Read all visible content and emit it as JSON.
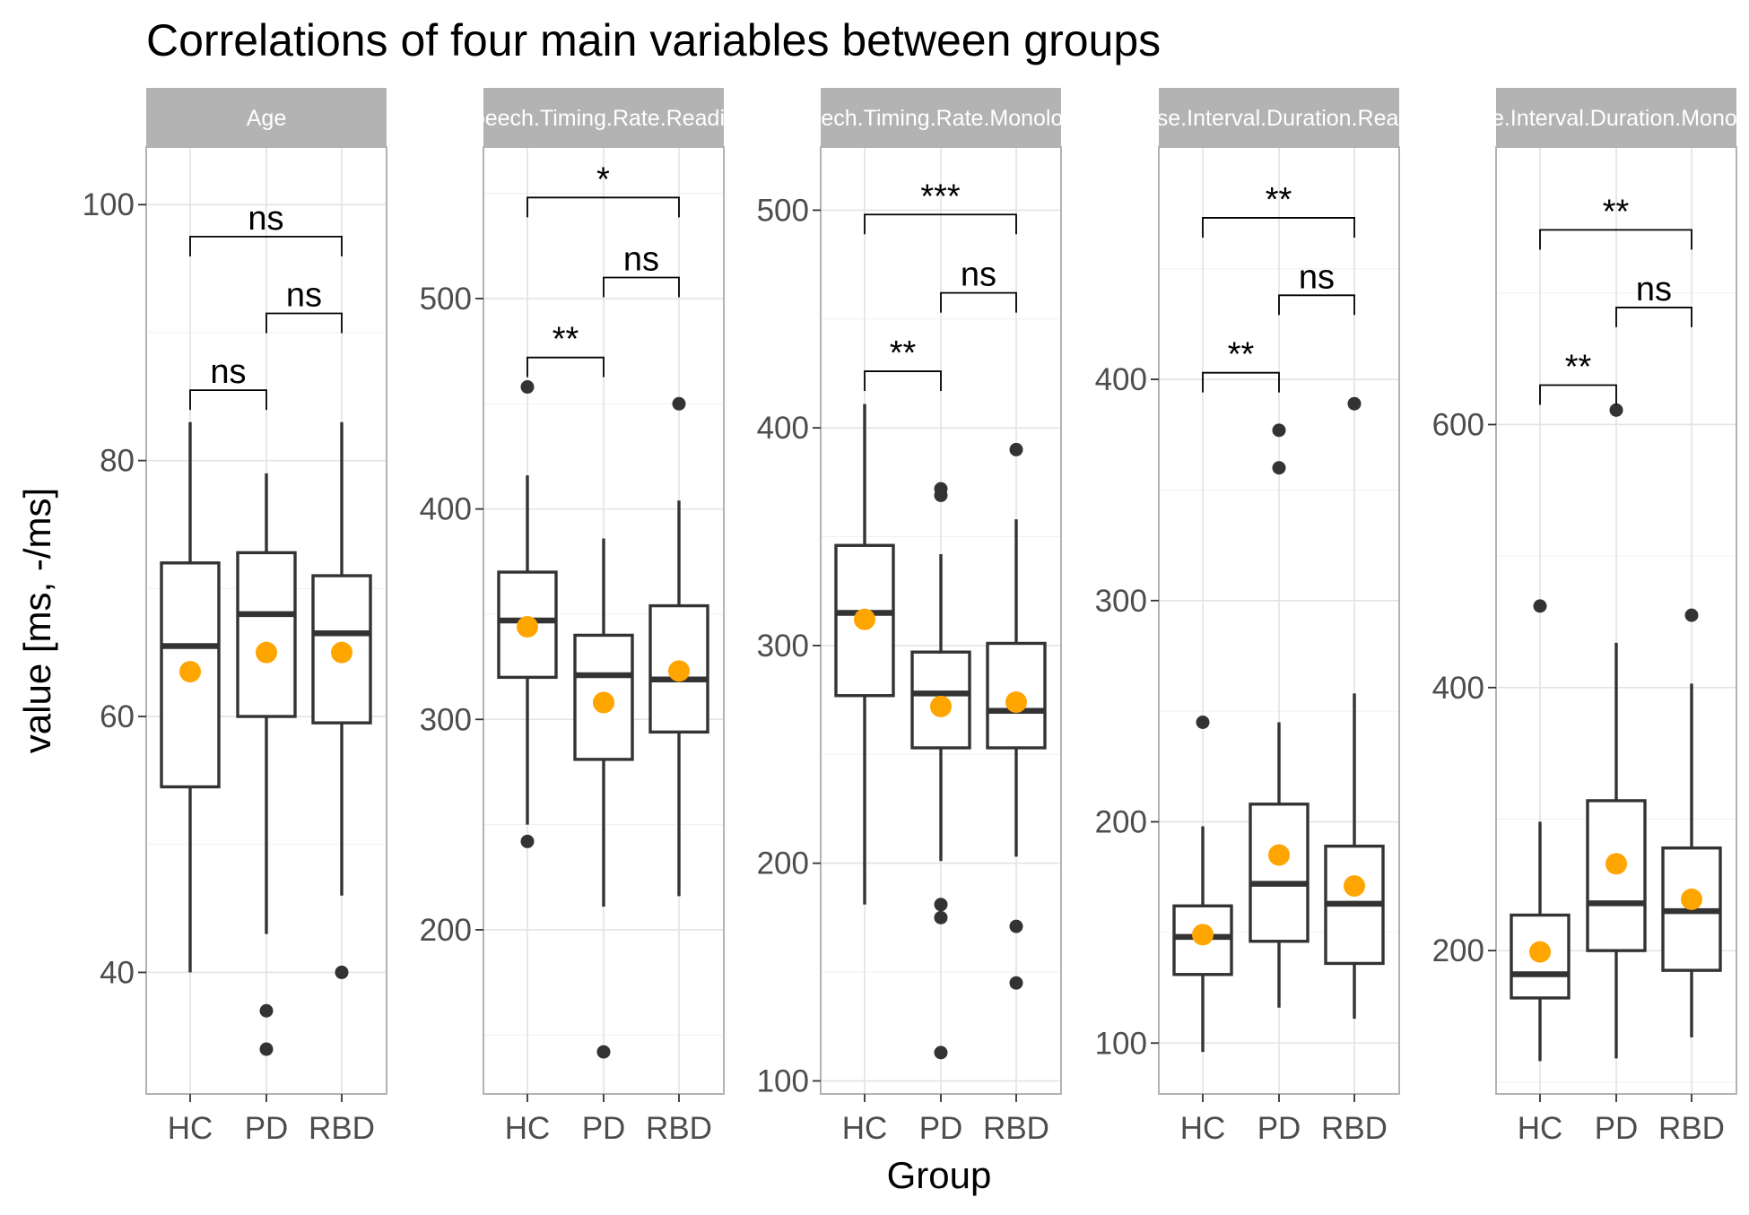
{
  "chart_data": {
    "type": "box",
    "title": "Correlations of four main variables between groups",
    "xlabel": "Group",
    "ylabel": "value [ms, -/ms]",
    "categories": [
      "HC",
      "PD",
      "RBD"
    ],
    "grid": true,
    "mean_marker_color": "#FFA500",
    "box_color": "#333333",
    "strip_color": "#b3b3b3",
    "facets": [
      {
        "label": "Age",
        "ylim": [
          30.5,
          104.5
        ],
        "yticks": [
          40,
          60,
          80,
          100
        ],
        "boxes": [
          {
            "group": "HC",
            "lower_whisker": 40,
            "q1": 54.5,
            "median": 65.5,
            "q3": 72,
            "upper_whisker": 83,
            "mean": 63.5,
            "outliers": []
          },
          {
            "group": "PD",
            "lower_whisker": 43,
            "q1": 60,
            "median": 68,
            "q3": 72.8,
            "upper_whisker": 79,
            "mean": 65,
            "outliers": [
              37,
              34
            ]
          },
          {
            "group": "RBD",
            "lower_whisker": 46,
            "q1": 59.5,
            "median": 66.5,
            "q3": 71,
            "upper_whisker": 83,
            "mean": 65,
            "outliers": [
              40
            ]
          }
        ],
        "comparisons": [
          {
            "from": "HC",
            "to": "PD",
            "label": "ns",
            "y": 85.5
          },
          {
            "from": "PD",
            "to": "RBD",
            "label": "ns",
            "y": 91.5
          },
          {
            "from": "HC",
            "to": "RBD",
            "label": "ns",
            "y": 97.5
          }
        ]
      },
      {
        "label": "Speech.Timing.Rate.Reading",
        "ylim": [
          122,
          572
        ],
        "yticks": [
          200,
          300,
          400,
          500
        ],
        "boxes": [
          {
            "group": "HC",
            "lower_whisker": 250,
            "q1": 320,
            "median": 347,
            "q3": 370,
            "upper_whisker": 416,
            "mean": 344,
            "outliers": [
              458,
              242
            ]
          },
          {
            "group": "PD",
            "lower_whisker": 211,
            "q1": 281,
            "median": 321,
            "q3": 340,
            "upper_whisker": 386,
            "mean": 308,
            "outliers": [
              142
            ]
          },
          {
            "group": "RBD",
            "lower_whisker": 216,
            "q1": 294,
            "median": 319,
            "q3": 354,
            "upper_whisker": 404,
            "mean": 323,
            "outliers": [
              450
            ]
          }
        ],
        "comparisons": [
          {
            "from": "HC",
            "to": "PD",
            "label": "**",
            "y": 472
          },
          {
            "from": "PD",
            "to": "RBD",
            "label": "ns",
            "y": 510
          },
          {
            "from": "HC",
            "to": "RBD",
            "label": "*",
            "y": 548
          }
        ]
      },
      {
        "label": "Speech.Timing.Rate.Monologue",
        "ylim": [
          94,
          529
        ],
        "yticks": [
          100,
          200,
          300,
          400,
          500
        ],
        "boxes": [
          {
            "group": "HC",
            "lower_whisker": 181,
            "q1": 277,
            "median": 315,
            "q3": 346,
            "upper_whisker": 411,
            "mean": 312,
            "outliers": []
          },
          {
            "group": "PD",
            "lower_whisker": 201,
            "q1": 253,
            "median": 278,
            "q3": 297,
            "upper_whisker": 342,
            "mean": 272,
            "outliers": [
              372,
              369,
              181,
              175,
              113
            ]
          },
          {
            "group": "RBD",
            "lower_whisker": 203,
            "q1": 253,
            "median": 270,
            "q3": 301,
            "upper_whisker": 358,
            "mean": 274,
            "outliers": [
              390,
              171,
              145
            ]
          }
        ],
        "comparisons": [
          {
            "from": "HC",
            "to": "PD",
            "label": "**",
            "y": 426
          },
          {
            "from": "PD",
            "to": "RBD",
            "label": "ns",
            "y": 462
          },
          {
            "from": "HC",
            "to": "RBD",
            "label": "***",
            "y": 498
          }
        ]
      },
      {
        "label": "Pause.Interval.Duration.Reading",
        "ylim": [
          77,
          505
        ],
        "yticks": [
          100,
          200,
          300,
          400
        ],
        "boxes": [
          {
            "group": "HC",
            "lower_whisker": 96,
            "q1": 131,
            "median": 148,
            "q3": 162,
            "upper_whisker": 198,
            "mean": 149,
            "outliers": [
              245
            ]
          },
          {
            "group": "PD",
            "lower_whisker": 116,
            "q1": 146,
            "median": 172,
            "q3": 208,
            "upper_whisker": 245,
            "mean": 185,
            "outliers": [
              377,
              360
            ]
          },
          {
            "group": "RBD",
            "lower_whisker": 111,
            "q1": 136,
            "median": 163,
            "q3": 189,
            "upper_whisker": 258,
            "mean": 171,
            "outliers": [
              389
            ]
          }
        ],
        "comparisons": [
          {
            "from": "HC",
            "to": "PD",
            "label": "**",
            "y": 403
          },
          {
            "from": "PD",
            "to": "RBD",
            "label": "ns",
            "y": 438
          },
          {
            "from": "HC",
            "to": "RBD",
            "label": "**",
            "y": 473
          }
        ]
      },
      {
        "label": "Pause.Interval.Duration.Monologue",
        "ylim": [
          91,
          811
        ],
        "yticks": [
          200,
          400,
          600
        ],
        "boxes": [
          {
            "group": "HC",
            "lower_whisker": 116,
            "q1": 164,
            "median": 182,
            "q3": 227,
            "upper_whisker": 298,
            "mean": 199,
            "outliers": [
              462
            ]
          },
          {
            "group": "PD",
            "lower_whisker": 118,
            "q1": 200,
            "median": 236,
            "q3": 314,
            "upper_whisker": 434,
            "mean": 266,
            "outliers": [
              611
            ]
          },
          {
            "group": "RBD",
            "lower_whisker": 134,
            "q1": 185,
            "median": 230,
            "q3": 278,
            "upper_whisker": 403,
            "mean": 239,
            "outliers": [
              455
            ]
          }
        ],
        "comparisons": [
          {
            "from": "HC",
            "to": "PD",
            "label": "**",
            "y": 630
          },
          {
            "from": "PD",
            "to": "RBD",
            "label": "ns",
            "y": 689
          },
          {
            "from": "HC",
            "to": "RBD",
            "label": "**",
            "y": 748
          }
        ]
      }
    ]
  }
}
